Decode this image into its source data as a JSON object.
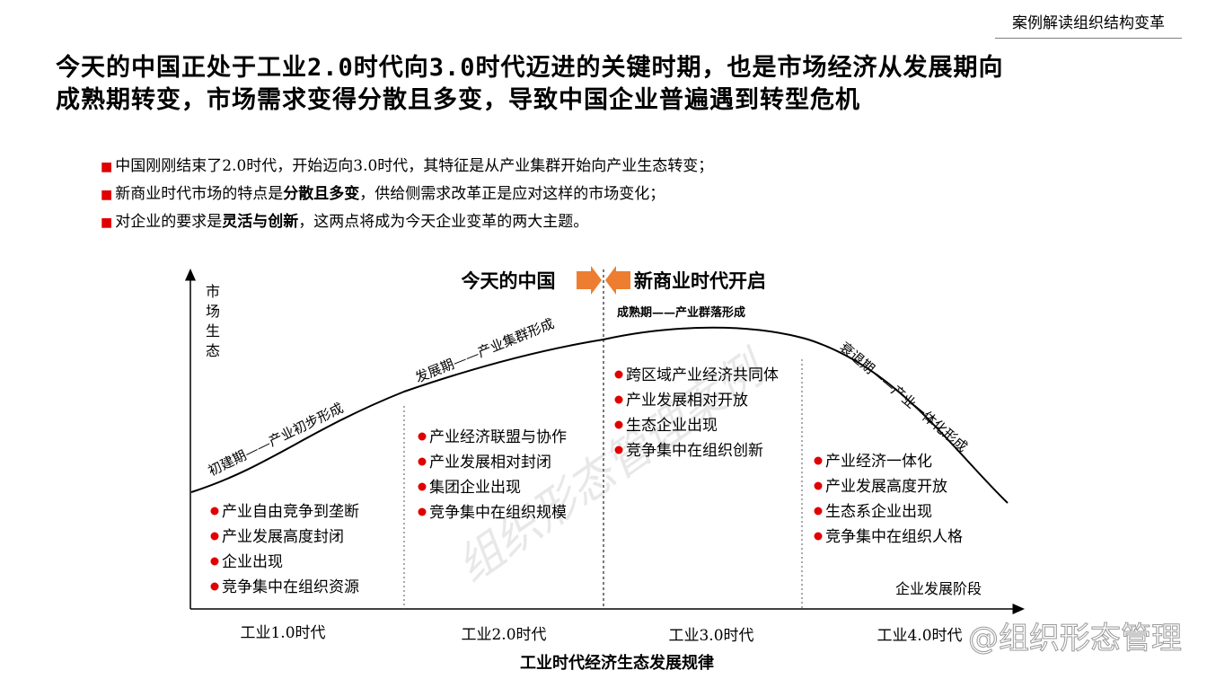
{
  "header": {
    "tag": "案例解读组织结构变革"
  },
  "headline": {
    "line1": "今天的中国正处于工业2.0时代向3.0时代迈进的关键时期，也是市场经济从发展期向",
    "line2": "成熟期转变，市场需求变得分散且多变，导致中国企业普遍遇到转型危机"
  },
  "bullets": [
    {
      "pre": "中国刚刚结束了2.0时代，开始迈向3.0时代，其特征是从产业集群开始向产业生态转变；",
      "bold": "",
      "post": ""
    },
    {
      "pre": "新商业时代市场的特点是",
      "bold": "分散且多变",
      "post": "，供给侧需求改革正是应对这样的市场变化；"
    },
    {
      "pre": "对企业的要求是",
      "bold": "灵活与创新",
      "post": "，这两点将成为今天企业变革的两大主题。"
    }
  ],
  "diagram": {
    "y_axis_label": [
      "市",
      "场",
      "生",
      "态"
    ],
    "x_axis_label": "企业发展阶段",
    "today_label": "今天的中国",
    "new_era_label": "新商业时代开启",
    "arrow_color": "#ed7d31",
    "bullet_color": "#e00000",
    "phases": [
      "初建期——产业初步形成",
      "发展期——产业集群形成",
      "成熟期——产业群落形成",
      "衰退期——产业一体化形成"
    ],
    "lists": [
      [
        "产业自由竞争到垄断",
        "产业发展高度封闭",
        "企业出现",
        "竞争集中在组织资源"
      ],
      [
        "产业经济联盟与协作",
        "产业发展相对封闭",
        "集团企业出现",
        "竞争集中在组织规模"
      ],
      [
        "跨区域产业经济共同体",
        "产业发展相对开放",
        "生态企业出现",
        "竞争集中在组织创新"
      ],
      [
        "产业经济一体化",
        "产业发展高度开放",
        "生态系企业出现",
        "竞争集中在组织人格"
      ]
    ],
    "eras": [
      "工业1.0时代",
      "工业2.0时代",
      "工业3.0时代",
      "工业4.0时代"
    ],
    "caption": "工业时代经济生态发展规律",
    "watermark": "组织形态管理案例",
    "corner_watermark": "@组织形态管理"
  }
}
